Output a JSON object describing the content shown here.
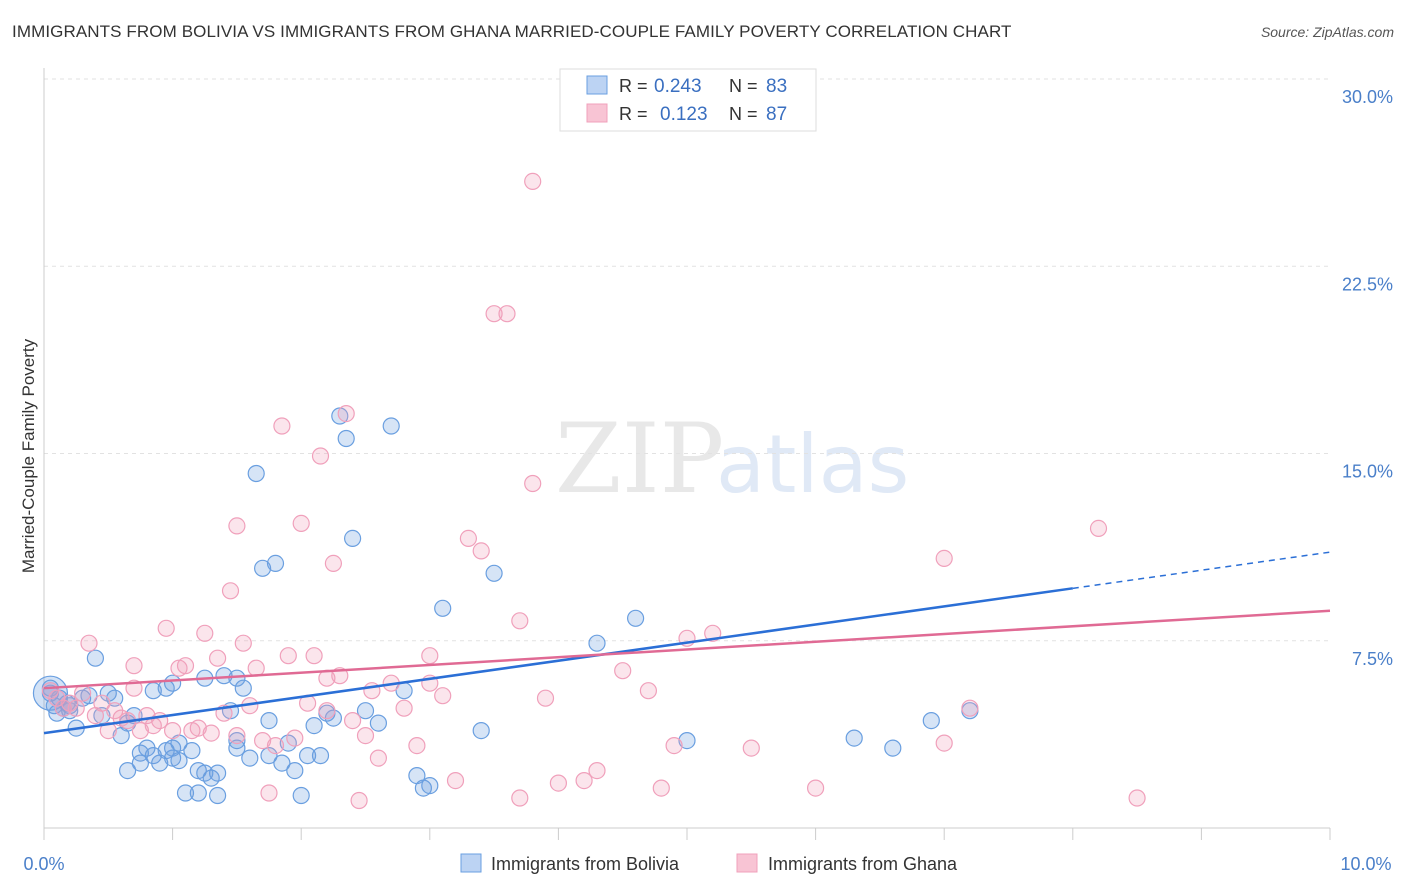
{
  "chart_data": {
    "type": "scatter",
    "title": "IMMIGRANTS FROM BOLIVIA VS IMMIGRANTS FROM GHANA MARRIED-COUPLE FAMILY POVERTY CORRELATION CHART",
    "source": "Source: ZipAtlas.com",
    "xlabel": "",
    "ylabel": "Married-Couple Family Poverty",
    "xlim": [
      0,
      10
    ],
    "ylim": [
      0,
      30
    ],
    "x_tick_labels": [
      "0.0%",
      "10.0%"
    ],
    "y_ticks": [
      7.5,
      15,
      22.5,
      30
    ],
    "y_tick_labels": [
      "7.5%",
      "15.0%",
      "22.5%",
      "30.0%"
    ],
    "grid": true,
    "watermark": {
      "part1": "ZIP",
      "part2": "atlas"
    },
    "stats_legend": {
      "r_label": "R =",
      "n_label": "N =",
      "entries": [
        {
          "series": "Immigrants from Bolivia",
          "r": "0.243",
          "n": "83"
        },
        {
          "series": "Immigrants from Ghana",
          "r": "0.123",
          "n": "87"
        }
      ]
    },
    "series": [
      {
        "name": "Immigrants from Bolivia",
        "color": "#6a9fe0",
        "line_color": "#2b6fd6",
        "trend": {
          "x0": 0.0,
          "y0": 3.8,
          "x1": 8.0,
          "y1": 9.6,
          "dash_to_x": 10.0,
          "dash_to_y": 11.05
        },
        "points": [
          [
            0.05,
            5.4
          ],
          [
            0.08,
            4.9
          ],
          [
            0.1,
            4.6
          ],
          [
            0.12,
            5.2
          ],
          [
            0.15,
            4.8
          ],
          [
            0.18,
            5.0
          ],
          [
            0.2,
            4.7
          ],
          [
            0.25,
            4.0
          ],
          [
            0.3,
            5.2
          ],
          [
            0.35,
            5.3
          ],
          [
            0.4,
            6.8
          ],
          [
            0.45,
            4.5
          ],
          [
            0.5,
            5.4
          ],
          [
            0.55,
            5.2
          ],
          [
            0.6,
            3.7
          ],
          [
            0.65,
            4.2
          ],
          [
            0.65,
            2.3
          ],
          [
            0.7,
            4.5
          ],
          [
            0.75,
            3.0
          ],
          [
            0.75,
            2.6
          ],
          [
            0.8,
            3.2
          ],
          [
            0.85,
            5.5
          ],
          [
            0.85,
            2.9
          ],
          [
            0.9,
            2.6
          ],
          [
            0.95,
            5.6
          ],
          [
            0.95,
            3.1
          ],
          [
            1.0,
            3.2
          ],
          [
            1.0,
            2.8
          ],
          [
            1.05,
            3.4
          ],
          [
            1.05,
            2.7
          ],
          [
            1.1,
            1.4
          ],
          [
            1.15,
            3.1
          ],
          [
            1.2,
            2.3
          ],
          [
            1.2,
            1.4
          ],
          [
            1.25,
            6.0
          ],
          [
            1.3,
            2.0
          ],
          [
            1.35,
            1.3
          ],
          [
            1.35,
            2.2
          ],
          [
            1.4,
            6.1
          ],
          [
            1.45,
            4.7
          ],
          [
            1.5,
            3.5
          ],
          [
            1.5,
            3.2
          ],
          [
            1.55,
            5.6
          ],
          [
            1.6,
            2.8
          ],
          [
            1.65,
            14.2
          ],
          [
            1.7,
            10.4
          ],
          [
            1.75,
            2.9
          ],
          [
            1.75,
            4.3
          ],
          [
            1.8,
            10.6
          ],
          [
            1.85,
            2.6
          ],
          [
            1.9,
            3.4
          ],
          [
            1.95,
            2.3
          ],
          [
            2.0,
            1.3
          ],
          [
            2.05,
            2.9
          ],
          [
            2.1,
            4.1
          ],
          [
            2.15,
            2.9
          ],
          [
            2.2,
            4.6
          ],
          [
            2.25,
            4.4
          ],
          [
            2.3,
            16.5
          ],
          [
            2.35,
            15.6
          ],
          [
            2.4,
            11.6
          ],
          [
            2.5,
            4.7
          ],
          [
            2.6,
            4.2
          ],
          [
            2.7,
            16.1
          ],
          [
            2.8,
            5.5
          ],
          [
            2.9,
            2.1
          ],
          [
            2.95,
            1.6
          ],
          [
            3.0,
            1.7
          ],
          [
            3.1,
            8.8
          ],
          [
            3.4,
            3.9
          ],
          [
            3.5,
            10.2
          ],
          [
            4.3,
            7.4
          ],
          [
            4.6,
            8.4
          ],
          [
            5.0,
            3.5
          ],
          [
            6.3,
            3.6
          ],
          [
            6.6,
            3.2
          ],
          [
            6.9,
            4.3
          ],
          [
            7.2,
            4.7
          ],
          [
            0.05,
            5.6
          ],
          [
            1.0,
            5.8
          ],
          [
            1.5,
            6.0
          ],
          [
            0.2,
            4.9
          ],
          [
            1.25,
            2.2
          ]
        ]
      },
      {
        "name": "Immigrants from Ghana",
        "color": "#f0a0bb",
        "line_color": "#e06a94",
        "trend": {
          "x0": 0.0,
          "y0": 5.6,
          "x1": 10.0,
          "y1": 8.7
        },
        "points": [
          [
            0.05,
            5.5
          ],
          [
            0.1,
            5.2
          ],
          [
            0.15,
            4.8
          ],
          [
            0.2,
            5.0
          ],
          [
            0.25,
            4.8
          ],
          [
            0.3,
            5.4
          ],
          [
            0.35,
            7.4
          ],
          [
            0.4,
            4.5
          ],
          [
            0.45,
            5.0
          ],
          [
            0.5,
            3.9
          ],
          [
            0.55,
            4.7
          ],
          [
            0.6,
            4.4
          ],
          [
            0.65,
            4.3
          ],
          [
            0.7,
            5.6
          ],
          [
            0.7,
            6.5
          ],
          [
            0.75,
            3.9
          ],
          [
            0.8,
            4.5
          ],
          [
            0.85,
            4.1
          ],
          [
            0.9,
            4.3
          ],
          [
            0.95,
            8.0
          ],
          [
            1.0,
            3.9
          ],
          [
            1.05,
            6.4
          ],
          [
            1.1,
            6.5
          ],
          [
            1.15,
            3.9
          ],
          [
            1.2,
            4.0
          ],
          [
            1.25,
            7.8
          ],
          [
            1.3,
            3.8
          ],
          [
            1.35,
            6.8
          ],
          [
            1.4,
            4.6
          ],
          [
            1.45,
            9.5
          ],
          [
            1.5,
            12.1
          ],
          [
            1.55,
            7.4
          ],
          [
            1.6,
            4.9
          ],
          [
            1.65,
            6.4
          ],
          [
            1.7,
            3.5
          ],
          [
            1.75,
            1.4
          ],
          [
            1.8,
            3.3
          ],
          [
            1.85,
            16.1
          ],
          [
            1.9,
            6.9
          ],
          [
            1.95,
            3.6
          ],
          [
            2.0,
            12.2
          ],
          [
            2.05,
            5.0
          ],
          [
            2.1,
            6.9
          ],
          [
            2.15,
            14.9
          ],
          [
            2.2,
            4.7
          ],
          [
            2.25,
            10.6
          ],
          [
            2.3,
            6.1
          ],
          [
            2.35,
            16.6
          ],
          [
            2.4,
            4.3
          ],
          [
            2.45,
            1.1
          ],
          [
            2.5,
            3.7
          ],
          [
            2.55,
            5.5
          ],
          [
            2.6,
            2.8
          ],
          [
            2.7,
            5.8
          ],
          [
            2.8,
            4.8
          ],
          [
            2.9,
            3.3
          ],
          [
            3.0,
            6.9
          ],
          [
            3.1,
            5.3
          ],
          [
            3.2,
            1.9
          ],
          [
            3.3,
            11.6
          ],
          [
            3.4,
            11.1
          ],
          [
            3.5,
            20.6
          ],
          [
            3.6,
            20.6
          ],
          [
            3.7,
            1.2
          ],
          [
            3.8,
            25.9
          ],
          [
            3.9,
            5.2
          ],
          [
            4.0,
            1.8
          ],
          [
            4.2,
            1.9
          ],
          [
            4.3,
            2.3
          ],
          [
            4.5,
            6.3
          ],
          [
            4.7,
            5.5
          ],
          [
            4.8,
            1.6
          ],
          [
            4.9,
            3.3
          ],
          [
            5.0,
            7.6
          ],
          [
            5.5,
            3.2
          ],
          [
            6.0,
            1.6
          ],
          [
            7.0,
            3.4
          ],
          [
            7.2,
            4.8
          ],
          [
            7.0,
            10.8
          ],
          [
            8.2,
            12.0
          ],
          [
            8.5,
            1.2
          ],
          [
            5.2,
            7.8
          ],
          [
            3.0,
            5.8
          ],
          [
            3.7,
            8.3
          ],
          [
            3.8,
            13.8
          ],
          [
            2.2,
            6.0
          ],
          [
            1.5,
            3.7
          ]
        ]
      }
    ]
  }
}
